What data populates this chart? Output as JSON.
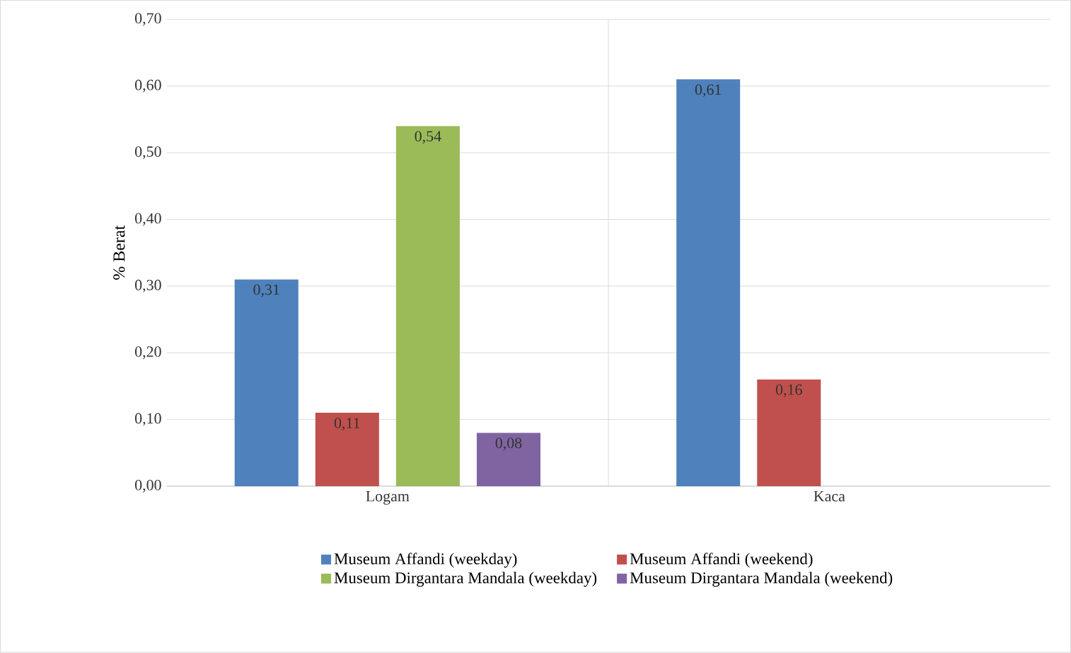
{
  "chart_data": {
    "type": "bar",
    "ylabel": "% Berat",
    "categories": [
      "Logam",
      "Kaca"
    ],
    "series": [
      {
        "name": "Museum Affandi (weekday)",
        "color": "#4f81bd",
        "values": [
          0.31,
          0.61
        ],
        "value_labels": [
          "0,31",
          "0,61"
        ]
      },
      {
        "name": "Museum Affandi (weekend)",
        "color": "#c0504d",
        "values": [
          0.11,
          0.16
        ],
        "value_labels": [
          "0,11",
          "0,16"
        ]
      },
      {
        "name": "Museum Dirgantara Mandala (weekday)",
        "color": "#9bbb59",
        "values": [
          0.54,
          null
        ],
        "value_labels": [
          "0,54",
          null
        ]
      },
      {
        "name": "Museum Dirgantara Mandala (weekend)",
        "color": "#8064a2",
        "values": [
          0.08,
          null
        ],
        "value_labels": [
          "0,08",
          null
        ]
      }
    ],
    "ylim": [
      0,
      0.7
    ],
    "yticks": [
      {
        "value": 0,
        "label": "0,00"
      },
      {
        "value": 0.1,
        "label": "0,10"
      },
      {
        "value": 0.2,
        "label": "0,20"
      },
      {
        "value": 0.3,
        "label": "0,30"
      },
      {
        "value": 0.4,
        "label": "0,40"
      },
      {
        "value": 0.5,
        "label": "0,50"
      },
      {
        "value": 0.6,
        "label": "0,60"
      },
      {
        "value": 0.7,
        "label": "0,70"
      }
    ],
    "grid": "y",
    "legend": "bottom"
  }
}
